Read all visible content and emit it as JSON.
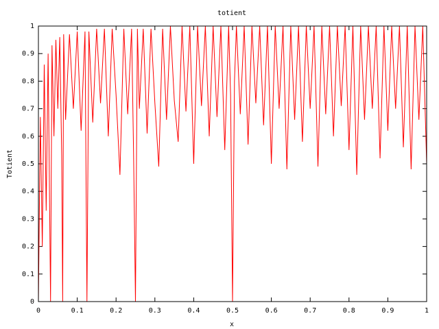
{
  "chart_data": {
    "type": "line",
    "title": "totient",
    "xlabel": "x",
    "ylabel": "Totient",
    "x": [
      0,
      0.005,
      0.01,
      0.015,
      0.02,
      0.025,
      0.03125,
      0.035,
      0.04,
      0.045,
      0.05,
      0.055,
      0.06,
      0.0625,
      0.065,
      0.07,
      0.08,
      0.09,
      0.1,
      0.11,
      0.12,
      0.125,
      0.13,
      0.14,
      0.15,
      0.16,
      0.17,
      0.18,
      0.19,
      0.2,
      0.21,
      0.22,
      0.23,
      0.24,
      0.245,
      0.25,
      0.255,
      0.26,
      0.27,
      0.28,
      0.29,
      0.3,
      0.31,
      0.32,
      0.33,
      0.34,
      0.35,
      0.36,
      0.37,
      0.38,
      0.39,
      0.4,
      0.41,
      0.42,
      0.43,
      0.44,
      0.45,
      0.46,
      0.47,
      0.48,
      0.49,
      0.495,
      0.5,
      0.505,
      0.51,
      0.52,
      0.53,
      0.54,
      0.55,
      0.56,
      0.57,
      0.58,
      0.59,
      0.6,
      0.61,
      0.62,
      0.63,
      0.64,
      0.65,
      0.66,
      0.67,
      0.68,
      0.69,
      0.7,
      0.71,
      0.72,
      0.73,
      0.74,
      0.75,
      0.76,
      0.77,
      0.78,
      0.79,
      0.8,
      0.81,
      0.82,
      0.83,
      0.84,
      0.85,
      0.86,
      0.87,
      0.88,
      0.89,
      0.9,
      0.91,
      0.92,
      0.93,
      0.94,
      0.95,
      0.96,
      0.97,
      0.98,
      0.99,
      1
    ],
    "values": [
      0,
      0.67,
      0.2,
      0.86,
      0.33,
      0.9,
      0,
      0.93,
      0.6,
      0.95,
      0.7,
      0.96,
      0.53,
      0,
      0.97,
      0.66,
      0.97,
      0.7,
      0.98,
      0.62,
      0.98,
      0,
      0.98,
      0.65,
      0.99,
      0.72,
      0.99,
      0.6,
      0.99,
      0.75,
      0.46,
      0.99,
      0.68,
      0.99,
      0.55,
      0,
      0.99,
      0.7,
      0.99,
      0.61,
      0.99,
      0.72,
      0.49,
      0.99,
      0.66,
      1,
      0.73,
      0.58,
      1,
      0.69,
      1,
      0.5,
      1,
      0.71,
      1,
      0.6,
      1,
      0.67,
      1,
      0.55,
      1,
      0.75,
      0,
      0.8,
      1,
      0.68,
      1,
      0.57,
      1,
      0.72,
      1,
      0.64,
      1,
      0.5,
      1,
      0.7,
      1,
      0.48,
      1,
      0.66,
      1,
      0.58,
      1,
      0.7,
      1,
      0.49,
      1,
      0.68,
      1,
      0.6,
      1,
      0.71,
      1,
      0.55,
      1,
      0.46,
      1,
      0.66,
      1,
      0.7,
      1,
      0.52,
      1,
      0.62,
      1,
      0.7,
      1,
      0.56,
      1,
      0.48,
      1,
      0.66,
      1,
      0.5
    ],
    "color": "#ff0000",
    "xlim": [
      0,
      1
    ],
    "ylim": [
      0,
      1
    ],
    "xticks": [
      0,
      0.1,
      0.2,
      0.3,
      0.4,
      0.5,
      0.6,
      0.7,
      0.8,
      0.9,
      1
    ],
    "yticks": [
      0,
      0.1,
      0.2,
      0.3,
      0.4,
      0.5,
      0.6,
      0.7,
      0.8,
      0.9,
      1
    ]
  }
}
